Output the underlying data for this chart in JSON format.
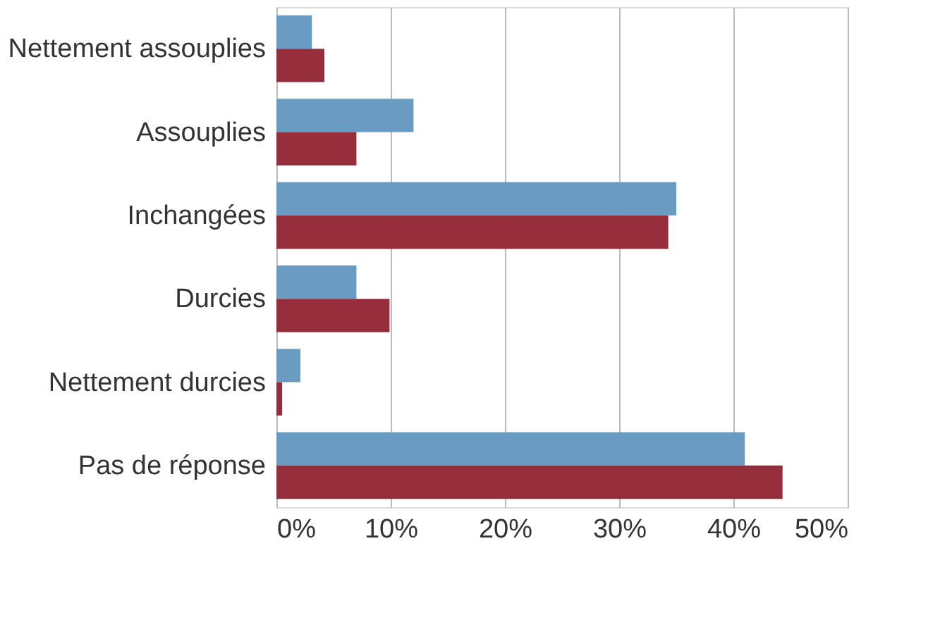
{
  "chart_data": {
    "type": "bar",
    "orientation": "horizontal",
    "categories": [
      "Nettement assouplies",
      "Assouplies",
      "Inchangées",
      "Durcies",
      "Nettement durcies",
      "Pas de réponse"
    ],
    "series": [
      {
        "color": "#6a9bc3",
        "values": [
          3.1,
          12,
          35,
          7,
          2.1,
          41
        ]
      },
      {
        "color": "#952d3b",
        "values": [
          4.2,
          7,
          34.3,
          9.9,
          0.5,
          44.3
        ]
      }
    ],
    "xlim": [
      0,
      50
    ],
    "xticks": [
      {
        "value": 0,
        "label": "0%"
      },
      {
        "value": 10,
        "label": "10%"
      },
      {
        "value": 20,
        "label": "20%"
      },
      {
        "value": 30,
        "label": "30%"
      },
      {
        "value": 40,
        "label": "40%"
      },
      {
        "value": 50,
        "label": "50%"
      }
    ],
    "grid": "x",
    "legend": false
  }
}
